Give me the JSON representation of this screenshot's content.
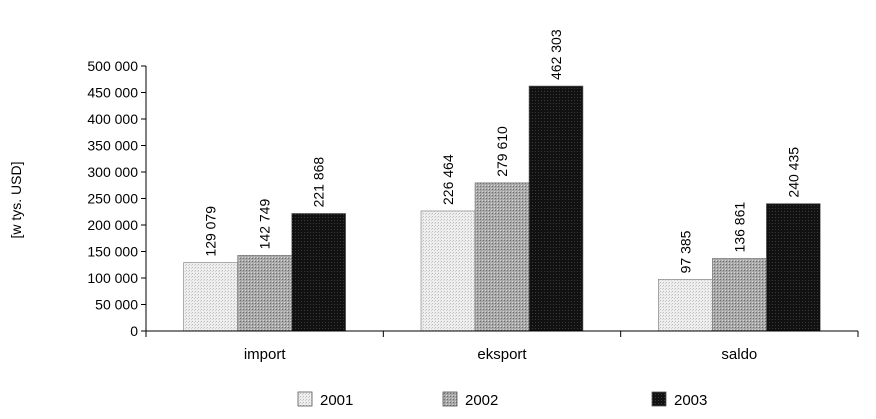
{
  "chart_data": {
    "type": "bar",
    "title": "",
    "xlabel": "",
    "ylabel": "[w tys. USD]",
    "ylim": [
      0,
      500000
    ],
    "ytick_step": 50000,
    "ytick_labels": [
      "0",
      "50 000",
      "100 000",
      "150 000",
      "200 000",
      "250 000",
      "300 000",
      "350 000",
      "400 000",
      "450 000",
      "500 000"
    ],
    "categories": [
      "import",
      "eksport",
      "saldo"
    ],
    "series": [
      {
        "name": "2001",
        "values": [
          129079,
          226464,
          97385
        ],
        "labels": [
          "129 079",
          "226 464",
          "97 385"
        ],
        "color": "#e4e4e4"
      },
      {
        "name": "2002",
        "values": [
          142749,
          279610,
          136861
        ],
        "labels": [
          "142 749",
          "279 610",
          "136 861"
        ],
        "color": "#a3a3a3"
      },
      {
        "name": "2003",
        "values": [
          221868,
          462303,
          240435
        ],
        "labels": [
          "221 868",
          "462 303",
          "240 435"
        ],
        "color": "#141414"
      }
    ],
    "legend_position": "bottom",
    "grid": false
  }
}
